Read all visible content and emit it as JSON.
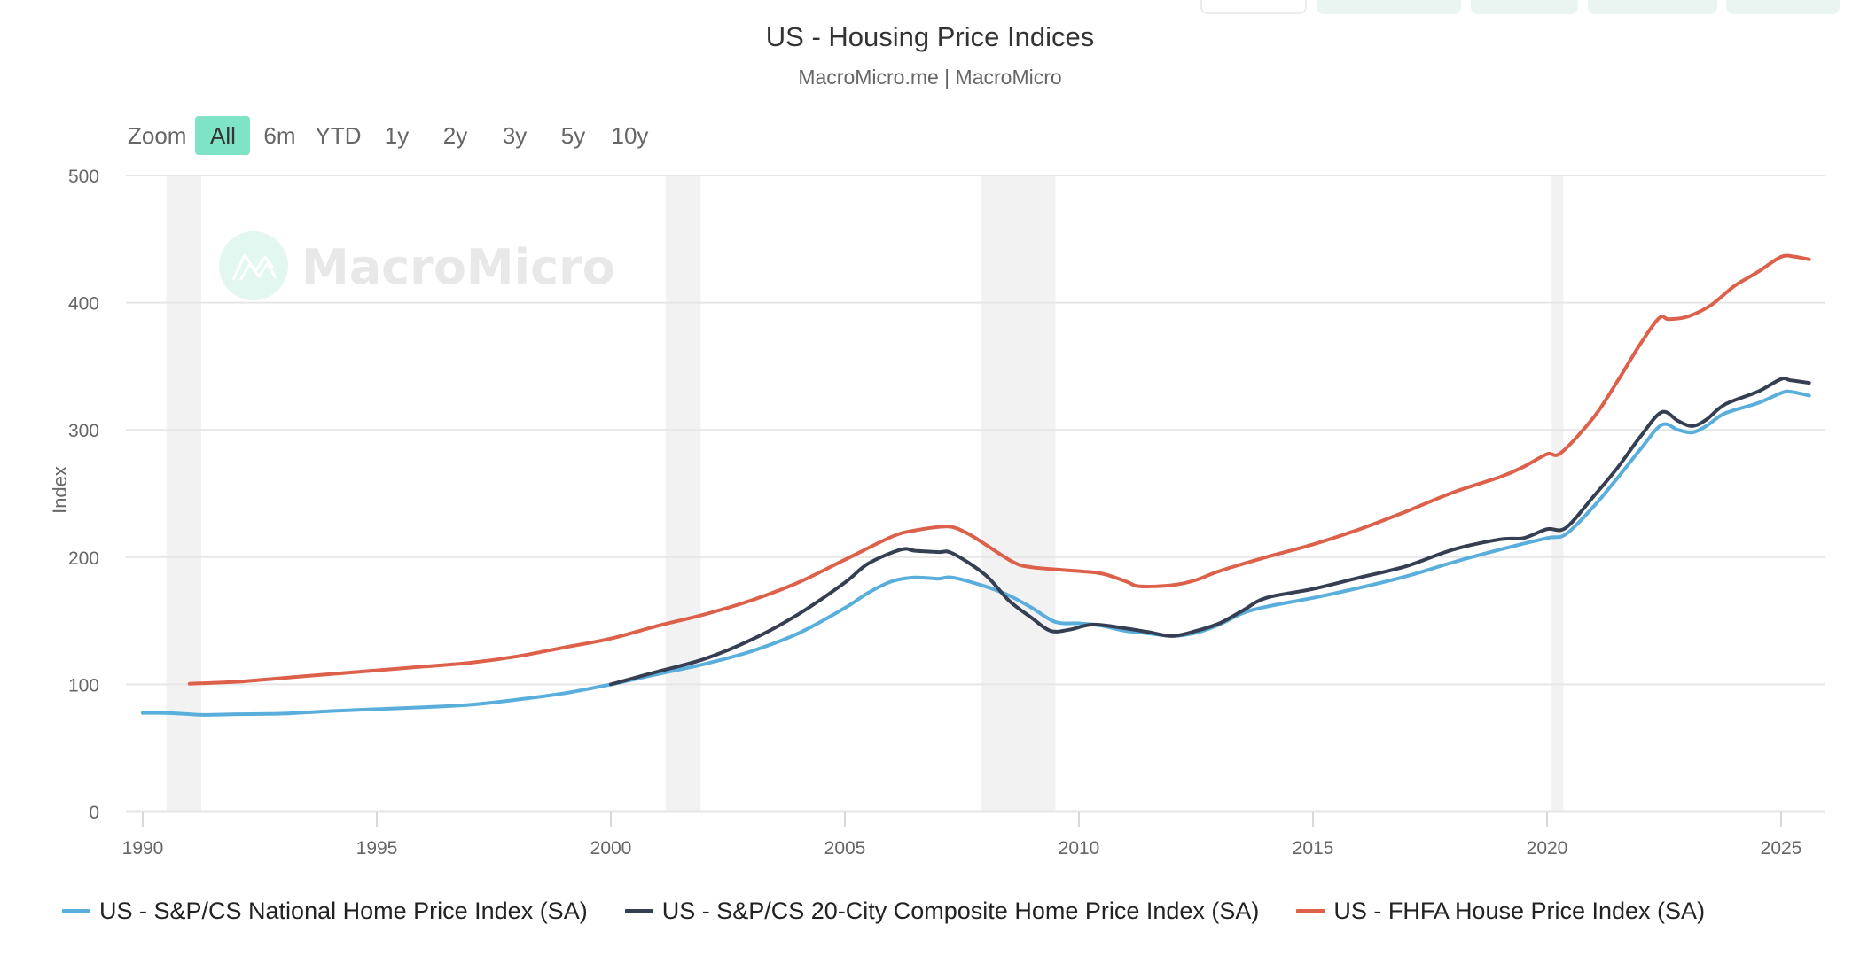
{
  "toolbar": {
    "buttons": [
      {
        "name": "toolbar-button-1",
        "style": "outline"
      },
      {
        "name": "toolbar-button-2",
        "style": "filled"
      },
      {
        "name": "toolbar-button-3",
        "style": "filled"
      },
      {
        "name": "toolbar-button-4",
        "style": "filled"
      },
      {
        "name": "toolbar-button-5",
        "style": "filled"
      }
    ]
  },
  "zoom": {
    "label": "Zoom",
    "options": [
      "All",
      "6m",
      "YTD",
      "1y",
      "2y",
      "3y",
      "5y",
      "10y"
    ],
    "active": "All"
  },
  "watermark": {
    "text": "MacroMicro",
    "icon": "macromicro-logo-icon"
  },
  "colors": {
    "national": "#5aaedb",
    "city20": "#363e52",
    "fhfa": "#dc604a",
    "recession": "#f2f2f2",
    "grid": "#e6e6e6",
    "accent": "#7fe3c5"
  },
  "chart_data": {
    "type": "line",
    "title": "US - Housing Price Indices",
    "subtitle": "MacroMicro.me | MacroMicro",
    "xlabel": "",
    "ylabel": "Index",
    "xlim": [
      1989.7,
      2025.9
    ],
    "ylim": [
      0,
      500
    ],
    "x_ticks": [
      1990,
      1995,
      2000,
      2005,
      2010,
      2015,
      2020,
      2025
    ],
    "x_tick_labels": [
      "1990",
      "1995",
      "2000",
      "2005",
      "2010",
      "2015",
      "2020",
      "2025"
    ],
    "y_ticks": [
      0,
      100,
      200,
      300,
      400,
      500
    ],
    "y_tick_labels": [
      "0",
      "100",
      "200",
      "300",
      "400",
      "500"
    ],
    "grid": true,
    "legend_position": "bottom",
    "recession_bands": [
      [
        1990.5,
        1991.25
      ],
      [
        2001.17,
        2001.92
      ],
      [
        2007.92,
        2009.5
      ],
      [
        2020.1,
        2020.35
      ]
    ],
    "series": [
      {
        "name": "US - S&P/CS National Home Price Index (SA)",
        "color_key": "national",
        "x": [
          1990.0,
          1990.5,
          1991.0,
          1991.3,
          1992.0,
          1993.0,
          1994.0,
          1995.0,
          1996.0,
          1997.0,
          1998.0,
          1999.0,
          2000.0,
          2001.0,
          2002.0,
          2003.0,
          2004.0,
          2005.0,
          2005.5,
          2006.0,
          2006.5,
          2007.0,
          2007.3,
          2008.0,
          2008.5,
          2009.0,
          2009.5,
          2010.0,
          2010.5,
          2011.0,
          2011.5,
          2012.0,
          2012.5,
          2013.0,
          2013.5,
          2014.0,
          2015.0,
          2016.0,
          2017.0,
          2018.0,
          2019.0,
          2020.0,
          2020.4,
          2021.0,
          2021.5,
          2022.0,
          2022.45,
          2022.8,
          2023.1,
          2023.4,
          2023.8,
          2024.5,
          2025.0,
          2025.2,
          2025.6
        ],
        "y": [
          77.5,
          77.5,
          76.5,
          76.0,
          76.5,
          77.0,
          79.0,
          80.5,
          82.0,
          84.0,
          88.0,
          93.0,
          100.0,
          108.0,
          116.0,
          126.0,
          140.0,
          160.0,
          172.0,
          181.0,
          184.0,
          183.0,
          184.0,
          177.0,
          170.0,
          160.0,
          149.0,
          148.0,
          146.0,
          142.0,
          140.0,
          138.0,
          140.5,
          147.0,
          156.0,
          161.0,
          168.0,
          176.0,
          185.0,
          196.0,
          206.0,
          215.0,
          218.0,
          240.0,
          262.0,
          285.0,
          304.0,
          300.0,
          298.0,
          303.0,
          313.0,
          321.0,
          329.0,
          330.0,
          327.0
        ]
      },
      {
        "name": "US - S&P/CS 20-City Composite Home Price Index (SA)",
        "color_key": "city20",
        "x": [
          2000.0,
          2001.0,
          2002.0,
          2003.0,
          2004.0,
          2005.0,
          2005.5,
          2006.2,
          2006.5,
          2007.0,
          2007.3,
          2008.0,
          2008.5,
          2009.0,
          2009.4,
          2009.8,
          2010.3,
          2011.0,
          2011.5,
          2012.0,
          2012.5,
          2013.0,
          2013.5,
          2014.0,
          2015.0,
          2016.0,
          2017.0,
          2018.0,
          2019.0,
          2019.5,
          2020.0,
          2020.4,
          2021.0,
          2021.5,
          2022.0,
          2022.45,
          2022.8,
          2023.1,
          2023.4,
          2023.8,
          2024.5,
          2025.0,
          2025.2,
          2025.6
        ],
        "y": [
          100.0,
          110.0,
          120.0,
          135.0,
          155.0,
          180.0,
          195.0,
          206.0,
          205.0,
          204.0,
          203.0,
          186.0,
          166.0,
          152.0,
          142.0,
          143.0,
          147.0,
          144.0,
          141.0,
          138.0,
          142.0,
          148.0,
          158.0,
          168.0,
          175.0,
          184.0,
          193.0,
          206.0,
          214.0,
          215.0,
          222.0,
          223.0,
          248.0,
          270.0,
          295.0,
          314.0,
          307.0,
          303.0,
          308.0,
          320.0,
          330.0,
          340.0,
          339.0,
          337.0
        ]
      },
      {
        "name": "US - FHFA House Price Index (SA)",
        "color_key": "fhfa",
        "x": [
          1991.0,
          1992.0,
          1993.0,
          1994.0,
          1995.0,
          1996.0,
          1997.0,
          1998.0,
          1999.0,
          2000.0,
          2001.0,
          2002.0,
          2003.0,
          2004.0,
          2005.0,
          2006.0,
          2006.5,
          2007.2,
          2007.6,
          2008.0,
          2008.6,
          2009.0,
          2010.0,
          2010.5,
          2011.0,
          2011.3,
          2012.0,
          2012.5,
          2013.0,
          2014.0,
          2015.0,
          2016.0,
          2017.0,
          2018.0,
          2019.0,
          2019.5,
          2020.0,
          2020.3,
          2021.0,
          2021.5,
          2022.0,
          2022.4,
          2022.6,
          2023.0,
          2023.5,
          2024.0,
          2024.5,
          2025.0,
          2025.3,
          2025.6
        ],
        "y": [
          100.5,
          102.0,
          105.0,
          108.0,
          111.0,
          114.0,
          117.0,
          122.0,
          129.0,
          136.0,
          146.0,
          155.0,
          166.0,
          180.0,
          198.0,
          216.0,
          221.0,
          224.0,
          219.0,
          210.0,
          196.0,
          192.0,
          189.0,
          187.0,
          181.0,
          177.0,
          178.0,
          182.0,
          189.0,
          200.0,
          210.0,
          222.0,
          236.0,
          251.0,
          263.0,
          271.0,
          281.0,
          282.0,
          310.0,
          338.0,
          368.0,
          388.0,
          387.0,
          389.0,
          398.0,
          413.0,
          424.0,
          436.0,
          436.0,
          434.0
        ]
      }
    ]
  }
}
